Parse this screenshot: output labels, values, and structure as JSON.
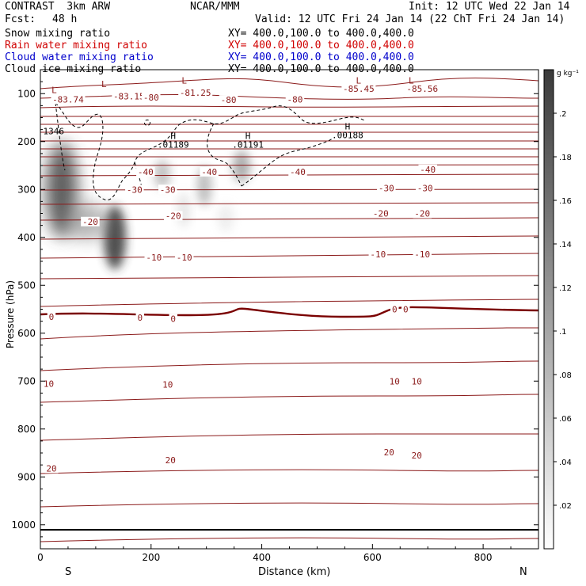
{
  "header": {
    "model": "CONTRAST  3km ARW",
    "org": "NCAR/MMM",
    "init": "Init: 12 UTC Wed 22 Jan 14",
    "fcst_label": "Fcst:",
    "fcst_value": "48 h",
    "valid": "Valid: 12 UTC Fri 24 Jan 14 (22 ChT Fri 24 Jan 14)"
  },
  "fields": [
    {
      "name": "Snow mixing ratio",
      "xy": "XY= 400.0,100.0 to 400.0,400.0",
      "color": "#000000"
    },
    {
      "name": "Rain water mixing ratio",
      "xy": "XY= 400.0,100.0 to 400.0,400.0",
      "color": "#d00000"
    },
    {
      "name": "Cloud water mixing ratio",
      "xy": "XY= 400.0,100.0 to 400.0,400.0",
      "color": "#0000cc"
    },
    {
      "name": "Cloud ice mixing ratio",
      "xy": "XY= 400.0,100.0 to 400.0,400.0",
      "color": "#000000"
    }
  ],
  "colors": {
    "isotherm": "#8b1a1a",
    "zero_isotherm": "#7a0000"
  },
  "chart_data": {
    "type": "heatmap",
    "xlabel": "Distance (km)",
    "ylabel": "Pressure (hPa)",
    "xlim": [
      0,
      900
    ],
    "ylim": [
      1050,
      50
    ],
    "x_ticks": [
      "0",
      "200",
      "400",
      "600",
      "800"
    ],
    "y_ticks": [
      "100",
      "200",
      "300",
      "400",
      "500",
      "600",
      "700",
      "800",
      "900",
      "1000"
    ],
    "x_ends": {
      "left": "S",
      "right": "N"
    },
    "colorbar": {
      "unit": "g kg⁻¹",
      "ticks": [
        ".2",
        ".18",
        ".16",
        ".14",
        ".12",
        ".1",
        ".08",
        ".06",
        ".04",
        ".02"
      ],
      "range": [
        0,
        0.22
      ]
    },
    "isotherm_labels": [
      {
        "text": "-83.74",
        "x": 50,
        "p": 112
      },
      {
        "text": "-83.15",
        "x": 160,
        "p": 105
      },
      {
        "text": "-80",
        "x": 200,
        "p": 108
      },
      {
        "text": "-81.25",
        "x": 280,
        "p": 98
      },
      {
        "text": "-80",
        "x": 340,
        "p": 113
      },
      {
        "text": "-80",
        "x": 460,
        "p": 112
      },
      {
        "text": "-85.45",
        "x": 575,
        "p": 90
      },
      {
        "text": "-85.56",
        "x": 690,
        "p": 90
      },
      {
        "text": "-40",
        "x": 190,
        "p": 263
      },
      {
        "text": "-40",
        "x": 305,
        "p": 263
      },
      {
        "text": "-40",
        "x": 465,
        "p": 263
      },
      {
        "text": "-40",
        "x": 700,
        "p": 258
      },
      {
        "text": "-30",
        "x": 170,
        "p": 300
      },
      {
        "text": "-30",
        "x": 230,
        "p": 300
      },
      {
        "text": "-30",
        "x": 625,
        "p": 297
      },
      {
        "text": "-30",
        "x": 695,
        "p": 297
      },
      {
        "text": "-20",
        "x": 90,
        "p": 367
      },
      {
        "text": "-20",
        "x": 240,
        "p": 355
      },
      {
        "text": "-20",
        "x": 615,
        "p": 350
      },
      {
        "text": "-20",
        "x": 690,
        "p": 350
      },
      {
        "text": "-10",
        "x": 205,
        "p": 442
      },
      {
        "text": "-10",
        "x": 260,
        "p": 442
      },
      {
        "text": "-10",
        "x": 610,
        "p": 435
      },
      {
        "text": "-10",
        "x": 690,
        "p": 435
      },
      {
        "text": "0",
        "x": 20,
        "p": 566
      },
      {
        "text": "0",
        "x": 180,
        "p": 567
      },
      {
        "text": "0",
        "x": 240,
        "p": 570
      },
      {
        "text": "0",
        "x": 640,
        "p": 550
      },
      {
        "text": "0",
        "x": 660,
        "p": 550
      },
      {
        "text": "10",
        "x": 15,
        "p": 705
      },
      {
        "text": "10",
        "x": 230,
        "p": 707
      },
      {
        "text": "10",
        "x": 640,
        "p": 700
      },
      {
        "text": "10",
        "x": 680,
        "p": 700
      },
      {
        "text": "20",
        "x": 20,
        "p": 882
      },
      {
        "text": "20",
        "x": 235,
        "p": 865
      },
      {
        "text": "20",
        "x": 630,
        "p": 848
      },
      {
        "text": "20",
        "x": 680,
        "p": 855
      }
    ],
    "extrema": [
      {
        "kind": "L",
        "x": 25,
        "p": 92
      },
      {
        "kind": "L",
        "x": 115,
        "p": 80
      },
      {
        "kind": "L",
        "x": 260,
        "p": 72
      },
      {
        "kind": "L",
        "x": 575,
        "p": 72
      },
      {
        "kind": "L",
        "x": 670,
        "p": 72
      },
      {
        "kind": "H",
        "x": 240,
        "p": 188,
        "value": ".01189"
      },
      {
        "kind": "H",
        "x": 375,
        "p": 188,
        "value": ".01191"
      },
      {
        "kind": "H",
        "x": 555,
        "p": 168,
        "value": ".00188"
      },
      {
        "kind": "value",
        "x": 5,
        "p": 178,
        "value": "1346"
      }
    ]
  }
}
